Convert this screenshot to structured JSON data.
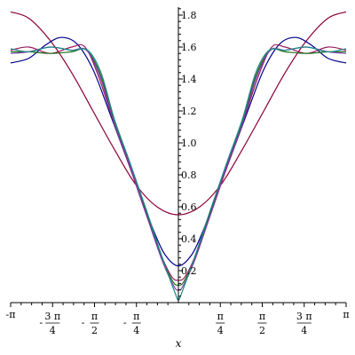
{
  "chart_data": {
    "type": "line",
    "title": "",
    "xlabel": "x",
    "ylabel": "",
    "xlim": [
      -3.14159,
      3.14159
    ],
    "ylim": [
      0,
      1.85
    ],
    "grid": false,
    "legend": "none",
    "xticks": [
      {
        "value": -3.14159,
        "num": "",
        "sign": "-",
        "den": "",
        "pi": true
      },
      {
        "value": -2.35619,
        "num": "3",
        "sign": "-",
        "den": "4",
        "pi": true
      },
      {
        "value": -1.5708,
        "num": "",
        "sign": "-",
        "den": "2",
        "pi": true
      },
      {
        "value": -0.7854,
        "num": "",
        "sign": "-",
        "den": "4",
        "pi": true
      },
      {
        "value": 0.7854,
        "num": "",
        "sign": "",
        "den": "4",
        "pi": true
      },
      {
        "value": 1.5708,
        "num": "",
        "sign": "",
        "den": "2",
        "pi": true
      },
      {
        "value": 2.35619,
        "num": "3",
        "sign": "",
        "den": "4",
        "pi": true
      },
      {
        "value": 3.14159,
        "num": "",
        "sign": "",
        "den": "",
        "pi": true
      }
    ],
    "ytick_labels": [
      "0.2",
      "0.4",
      "0.6",
      "0.8",
      "1.0",
      "1.2",
      "1.4",
      "1.6",
      "1.8"
    ],
    "ytick_values": [
      0.2,
      0.4,
      0.6,
      0.8,
      1.0,
      1.2,
      1.4,
      1.6,
      1.8
    ],
    "series": [
      {
        "color": "#8b0036",
        "x": [
          -3.14159,
          -2.8,
          -2.4,
          -2.0,
          -1.6,
          -1.2,
          -0.8,
          -0.4,
          0,
          0.4,
          0.8,
          1.2,
          1.6,
          2.0,
          2.4,
          2.8,
          3.14159
        ],
        "y": [
          1.82,
          1.78,
          1.64,
          1.44,
          1.2,
          0.96,
          0.74,
          0.6,
          0.55,
          0.6,
          0.74,
          0.96,
          1.2,
          1.44,
          1.64,
          1.78,
          1.82
        ]
      },
      {
        "color": "#00008b",
        "x": [
          -3.14159,
          -2.8,
          -2.5,
          -2.2,
          -1.9,
          -1.6,
          -1.3,
          -1.0,
          -0.7,
          -0.45,
          -0.25,
          0,
          0.25,
          0.45,
          0.7,
          1.0,
          1.3,
          1.6,
          1.9,
          2.2,
          2.5,
          2.8,
          3.14159
        ],
        "y": [
          1.5,
          1.53,
          1.61,
          1.66,
          1.62,
          1.46,
          1.2,
          0.93,
          0.66,
          0.44,
          0.3,
          0.23,
          0.3,
          0.44,
          0.66,
          0.93,
          1.2,
          1.46,
          1.62,
          1.66,
          1.61,
          1.53,
          1.5
        ]
      },
      {
        "color": "#9a1a5c",
        "x": [
          -3.14159,
          -2.8,
          -2.4,
          -2.0,
          -1.75,
          -1.5,
          -1.2,
          -0.9,
          -0.6,
          -0.3,
          -0.12,
          0,
          0.12,
          0.3,
          0.6,
          0.9,
          1.2,
          1.5,
          1.75,
          2.0,
          2.4,
          2.8,
          3.14159
        ],
        "y": [
          1.58,
          1.6,
          1.56,
          1.6,
          1.6,
          1.42,
          1.12,
          0.84,
          0.55,
          0.28,
          0.16,
          0.14,
          0.16,
          0.28,
          0.55,
          0.84,
          1.12,
          1.42,
          1.6,
          1.6,
          1.56,
          1.6,
          1.58
        ]
      },
      {
        "color": "#1a6e1a",
        "x": [
          -3.14159,
          -2.8,
          -2.4,
          -2.0,
          -1.72,
          -1.45,
          -1.2,
          -0.9,
          -0.6,
          -0.3,
          -0.1,
          0,
          0.1,
          0.3,
          0.6,
          0.9,
          1.2,
          1.45,
          1.72,
          2.0,
          2.4,
          2.8,
          3.14159
        ],
        "y": [
          1.57,
          1.57,
          1.56,
          1.57,
          1.58,
          1.42,
          1.13,
          0.86,
          0.56,
          0.27,
          0.13,
          0.11,
          0.13,
          0.27,
          0.56,
          0.86,
          1.13,
          1.42,
          1.58,
          1.57,
          1.56,
          1.57,
          1.57
        ]
      },
      {
        "color": "#7b3fa8",
        "x": [
          -3.14159,
          -2.8,
          -2.4,
          -2.0,
          -1.72,
          -1.45,
          -1.2,
          -0.9,
          -0.6,
          -0.3,
          -0.08,
          0,
          0.08,
          0.3,
          0.6,
          0.9,
          1.2,
          1.45,
          1.72,
          2.0,
          2.4,
          2.8,
          3.14159
        ],
        "y": [
          1.56,
          1.57,
          1.6,
          1.58,
          1.58,
          1.4,
          1.12,
          0.85,
          0.55,
          0.26,
          0.1,
          0.08,
          0.1,
          0.26,
          0.55,
          0.85,
          1.12,
          1.4,
          1.58,
          1.58,
          1.6,
          1.57,
          1.56
        ]
      },
      {
        "color": "#1e8a8a",
        "x": [
          -3.14159,
          -2.8,
          -2.4,
          -2.0,
          -1.7,
          -1.45,
          -1.2,
          -0.9,
          -0.6,
          -0.3,
          -0.05,
          0,
          0.05,
          0.3,
          0.6,
          0.9,
          1.2,
          1.45,
          1.7,
          2.0,
          2.4,
          2.8,
          3.14159
        ],
        "y": [
          1.59,
          1.57,
          1.6,
          1.58,
          1.58,
          1.44,
          1.15,
          0.87,
          0.58,
          0.28,
          0.05,
          0.02,
          0.05,
          0.28,
          0.58,
          0.87,
          1.15,
          1.44,
          1.58,
          1.58,
          1.6,
          1.57,
          1.59
        ]
      }
    ]
  }
}
